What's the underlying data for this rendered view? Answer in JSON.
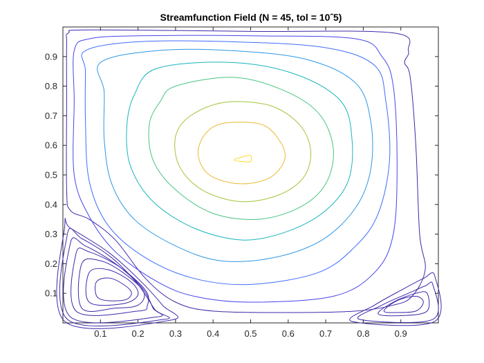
{
  "chart_data": {
    "type": "contour",
    "title": "Streamfunction Field (N = 45, tol = 10ˆ5)",
    "xlabel": "",
    "ylabel": "",
    "xlim": [
      0,
      1
    ],
    "ylim": [
      0,
      1
    ],
    "x_ticks": [
      "0.1",
      "0.2",
      "0.3",
      "0.4",
      "0.5",
      "0.6",
      "0.7",
      "0.8",
      "0.9"
    ],
    "y_ticks": [
      "0.1",
      "0.2",
      "0.3",
      "0.4",
      "0.5",
      "0.6",
      "0.7",
      "0.8",
      "0.9"
    ],
    "grid": false,
    "box": true,
    "colormap": "parula",
    "level_colors": [
      "#3e26a8",
      "#4443ea",
      "#3c6cfc",
      "#2b96e5",
      "#16b4ba",
      "#47c480",
      "#a0c43a",
      "#e8b92e",
      "#fcd924",
      "#f9fb15"
    ],
    "vortices": [
      {
        "name": "primary",
        "center": [
          0.48,
          0.555
        ],
        "contours": [
          {
            "level": 0,
            "points": [
              [
                0.015,
                0.98
              ],
              [
                0.07,
                0.99
              ],
              [
                0.5,
                0.985
              ],
              [
                0.88,
                0.98
              ],
              [
                0.92,
                0.92
              ],
              [
                0.91,
                0.88
              ],
              [
                0.925,
                0.83
              ],
              [
                0.94,
                0.6
              ],
              [
                0.95,
                0.3
              ],
              [
                0.965,
                0.18
              ],
              [
                0.93,
                0.09
              ],
              [
                0.88,
                0.06
              ],
              [
                0.78,
                0.04
              ],
              [
                0.6,
                0.035
              ],
              [
                0.4,
                0.04
              ],
              [
                0.3,
                0.07
              ],
              [
                0.22,
                0.15
              ],
              [
                0.14,
                0.28
              ],
              [
                0.07,
                0.35
              ],
              [
                0.02,
                0.38
              ],
              [
                0.01,
                0.45
              ],
              [
                0.01,
                0.75
              ],
              [
                0.01,
                0.94
              ]
            ]
          },
          {
            "level": 1,
            "points": [
              [
                0.07,
                0.96
              ],
              [
                0.2,
                0.97
              ],
              [
                0.5,
                0.97
              ],
              [
                0.78,
                0.96
              ],
              [
                0.85,
                0.9
              ],
              [
                0.88,
                0.8
              ],
              [
                0.89,
                0.55
              ],
              [
                0.88,
                0.3
              ],
              [
                0.83,
                0.17
              ],
              [
                0.72,
                0.09
              ],
              [
                0.5,
                0.07
              ],
              [
                0.35,
                0.09
              ],
              [
                0.25,
                0.14
              ],
              [
                0.14,
                0.24
              ],
              [
                0.07,
                0.36
              ],
              [
                0.03,
                0.5
              ],
              [
                0.03,
                0.75
              ],
              [
                0.03,
                0.92
              ]
            ]
          },
          {
            "level": 2,
            "points": [
              [
                0.06,
                0.92
              ],
              [
                0.2,
                0.95
              ],
              [
                0.45,
                0.95
              ],
              [
                0.7,
                0.93
              ],
              [
                0.83,
                0.87
              ],
              [
                0.86,
                0.75
              ],
              [
                0.87,
                0.55
              ],
              [
                0.84,
                0.37
              ],
              [
                0.78,
                0.26
              ],
              [
                0.68,
                0.17
              ],
              [
                0.5,
                0.13
              ],
              [
                0.35,
                0.15
              ],
              [
                0.22,
                0.22
              ],
              [
                0.12,
                0.33
              ],
              [
                0.07,
                0.48
              ],
              [
                0.06,
                0.68
              ],
              [
                0.06,
                0.85
              ]
            ]
          },
          {
            "level": 3,
            "points": [
              [
                0.1,
                0.88
              ],
              [
                0.25,
                0.92
              ],
              [
                0.45,
                0.92
              ],
              [
                0.65,
                0.89
              ],
              [
                0.78,
                0.81
              ],
              [
                0.82,
                0.68
              ],
              [
                0.82,
                0.52
              ],
              [
                0.78,
                0.39
              ],
              [
                0.69,
                0.28
              ],
              [
                0.56,
                0.22
              ],
              [
                0.42,
                0.21
              ],
              [
                0.3,
                0.26
              ],
              [
                0.19,
                0.35
              ],
              [
                0.13,
                0.47
              ],
              [
                0.11,
                0.62
              ],
              [
                0.11,
                0.78
              ]
            ]
          },
          {
            "level": 4,
            "points": [
              [
                0.25,
                0.86
              ],
              [
                0.45,
                0.88
              ],
              [
                0.62,
                0.84
              ],
              [
                0.74,
                0.75
              ],
              [
                0.77,
                0.62
              ],
              [
                0.76,
                0.48
              ],
              [
                0.7,
                0.38
              ],
              [
                0.6,
                0.31
              ],
              [
                0.48,
                0.28
              ],
              [
                0.35,
                0.32
              ],
              [
                0.24,
                0.41
              ],
              [
                0.18,
                0.53
              ],
              [
                0.17,
                0.66
              ],
              [
                0.19,
                0.77
              ]
            ]
          },
          {
            "level": 5,
            "points": [
              [
                0.3,
                0.8
              ],
              [
                0.45,
                0.83
              ],
              [
                0.58,
                0.79
              ],
              [
                0.68,
                0.71
              ],
              [
                0.72,
                0.59
              ],
              [
                0.7,
                0.47
              ],
              [
                0.63,
                0.39
              ],
              [
                0.52,
                0.35
              ],
              [
                0.4,
                0.37
              ],
              [
                0.3,
                0.45
              ],
              [
                0.24,
                0.55
              ],
              [
                0.23,
                0.67
              ],
              [
                0.26,
                0.75
              ]
            ]
          },
          {
            "level": 6,
            "points": [
              [
                0.43,
                0.745
              ],
              [
                0.55,
                0.735
              ],
              [
                0.63,
                0.67
              ],
              [
                0.66,
                0.58
              ],
              [
                0.64,
                0.49
              ],
              [
                0.57,
                0.43
              ],
              [
                0.47,
                0.41
              ],
              [
                0.37,
                0.45
              ],
              [
                0.31,
                0.53
              ],
              [
                0.3,
                0.63
              ],
              [
                0.34,
                0.7
              ]
            ]
          },
          {
            "level": 7,
            "points": [
              [
                0.43,
                0.675
              ],
              [
                0.53,
                0.67
              ],
              [
                0.58,
                0.61
              ],
              [
                0.59,
                0.55
              ],
              [
                0.55,
                0.49
              ],
              [
                0.47,
                0.47
              ],
              [
                0.39,
                0.5
              ],
              [
                0.36,
                0.57
              ],
              [
                0.38,
                0.64
              ]
            ]
          },
          {
            "level": 8,
            "points": [
              [
                0.455,
                0.55
              ],
              [
                0.48,
                0.562
              ],
              [
                0.5,
                0.565
              ],
              [
                0.5,
                0.545
              ],
              [
                0.48,
                0.545
              ]
            ]
          }
        ]
      },
      {
        "name": "bottom-left",
        "center": [
          0.15,
          0.11
        ],
        "contours": [
          {
            "level": 0,
            "points": [
              [
                0.005,
                0.005
              ],
              [
                0.005,
                0.33
              ],
              [
                0.02,
                0.32
              ],
              [
                0.12,
                0.24
              ],
              [
                0.2,
                0.15
              ],
              [
                0.265,
                0.06
              ],
              [
                0.29,
                0.01
              ]
            ]
          },
          {
            "level": 0,
            "points": [
              [
                0.012,
                0.012
              ],
              [
                0.012,
                0.3
              ],
              [
                0.05,
                0.285
              ],
              [
                0.13,
                0.22
              ],
              [
                0.2,
                0.13
              ],
              [
                0.245,
                0.045
              ],
              [
                0.27,
                0.012
              ]
            ]
          },
          {
            "level": 0,
            "points": [
              [
                0.02,
                0.02
              ],
              [
                0.02,
                0.27
              ],
              [
                0.06,
                0.26
              ],
              [
                0.14,
                0.2
              ],
              [
                0.21,
                0.12
              ],
              [
                0.24,
                0.05
              ],
              [
                0.25,
                0.02
              ]
            ]
          },
          {
            "level": 0,
            "points": [
              [
                0.035,
                0.04
              ],
              [
                0.035,
                0.235
              ],
              [
                0.07,
                0.24
              ],
              [
                0.15,
                0.19
              ],
              [
                0.22,
                0.11
              ],
              [
                0.225,
                0.06
              ],
              [
                0.2,
                0.04
              ]
            ]
          },
          {
            "level": 0,
            "points": [
              [
                0.05,
                0.05
              ],
              [
                0.05,
                0.2
              ],
              [
                0.1,
                0.21
              ],
              [
                0.16,
                0.17
              ],
              [
                0.215,
                0.105
              ],
              [
                0.2,
                0.06
              ],
              [
                0.14,
                0.05
              ]
            ]
          },
          {
            "level": 0,
            "points": [
              [
                0.07,
                0.07
              ],
              [
                0.07,
                0.17
              ],
              [
                0.12,
                0.18
              ],
              [
                0.18,
                0.14
              ],
              [
                0.2,
                0.095
              ],
              [
                0.16,
                0.065
              ]
            ]
          },
          {
            "level": 0,
            "points": [
              [
                0.09,
                0.09
              ],
              [
                0.09,
                0.14
              ],
              [
                0.13,
                0.15
              ],
              [
                0.18,
                0.11
              ],
              [
                0.17,
                0.08
              ],
              [
                0.12,
                0.075
              ]
            ]
          }
        ]
      },
      {
        "name": "bottom-right",
        "center": [
          0.9,
          0.07
        ],
        "contours": [
          {
            "level": 0,
            "points": [
              [
                0.77,
                0.005
              ],
              [
                0.83,
                0.06
              ],
              [
                0.9,
                0.11
              ],
              [
                0.96,
                0.15
              ],
              [
                0.99,
                0.16
              ],
              [
                0.99,
                0.005
              ]
            ]
          },
          {
            "level": 0,
            "points": [
              [
                0.79,
                0.012
              ],
              [
                0.85,
                0.06
              ],
              [
                0.92,
                0.1
              ],
              [
                0.965,
                0.125
              ],
              [
                0.985,
                0.13
              ],
              [
                0.985,
                0.012
              ]
            ]
          },
          {
            "level": 0,
            "points": [
              [
                0.84,
                0.03
              ],
              [
                0.88,
                0.07
              ],
              [
                0.94,
                0.1
              ],
              [
                0.97,
                0.1
              ],
              [
                0.97,
                0.04
              ],
              [
                0.91,
                0.025
              ]
            ]
          },
          {
            "level": 0,
            "points": [
              [
                0.855,
                0.04
              ],
              [
                0.89,
                0.075
              ],
              [
                0.94,
                0.09
              ],
              [
                0.96,
                0.07
              ],
              [
                0.94,
                0.04
              ],
              [
                0.89,
                0.035
              ]
            ]
          }
        ]
      }
    ]
  }
}
